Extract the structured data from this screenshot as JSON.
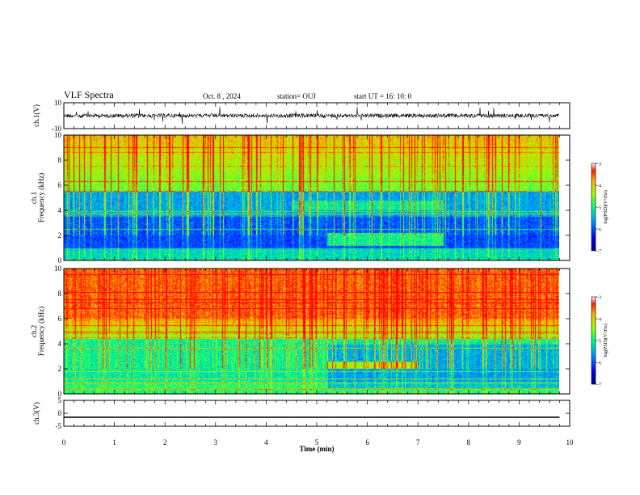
{
  "header": {
    "title": "VLF Spectra",
    "date": "Oct. 8 , 2024",
    "station": "station= OUJ",
    "start_time": "start UT =  16: 10: 0"
  },
  "chart_data": [
    {
      "type": "line",
      "panel": "ch1-waveform",
      "ylabel": "ch.1(V)",
      "ylim": [
        -10,
        10
      ],
      "y_ticks": [
        "10",
        "-10"
      ],
      "xlim": [
        0,
        10
      ],
      "description_level_volts": 0,
      "x_extent_min": 9.8
    },
    {
      "type": "heatmap",
      "panel": "ch1-spectrogram",
      "ylabel": "ch.1 Frequency (kHz)",
      "ylabel_lines": [
        "ch.1",
        "Frequency (kHz)"
      ],
      "ylim": [
        0,
        10
      ],
      "y_ticks": [
        "0",
        "2",
        "4",
        "6",
        "8",
        "10"
      ],
      "xlim": [
        0,
        10
      ],
      "x_extent_min": 9.8,
      "colorbar": {
        "label": "log(PSD)(V²/Hz)",
        "range": [
          -7,
          -3
        ],
        "ticks": [
          "-3",
          "-4",
          "-5",
          "-6",
          "-7"
        ]
      }
    },
    {
      "type": "heatmap",
      "panel": "ch2-spectrogram",
      "ylabel": "ch.2 Frequency (kHz)",
      "ylabel_lines": [
        "ch.2",
        "Frequency (kHz)"
      ],
      "ylim": [
        0,
        10
      ],
      "y_ticks": [
        "0",
        "2",
        "4",
        "6",
        "8",
        "10"
      ],
      "xlim": [
        0,
        10
      ],
      "x_extent_min": 9.8,
      "colorbar": {
        "label": "log(PSD)(V²/Hz)",
        "range": [
          -7,
          -3
        ],
        "ticks": [
          "-3",
          "-4",
          "-5",
          "-6",
          "-7"
        ]
      }
    },
    {
      "type": "line",
      "panel": "ch3-waveform",
      "ylabel": "ch.3(V)",
      "ylim": [
        -5,
        5
      ],
      "y_ticks": [
        "5",
        "0",
        "-5"
      ],
      "xlim": [
        0,
        10
      ],
      "x_ticks": [
        "0",
        "1",
        "2",
        "3",
        "4",
        "5",
        "6",
        "7",
        "8",
        "9",
        "10"
      ],
      "xlabel": "Time (min)",
      "series": [
        {
          "x": [
            0,
            9.8
          ],
          "values": [
            -1.5,
            -1.5
          ]
        }
      ]
    }
  ],
  "colors": {
    "psd_low": "#00007f",
    "psd_mid": "#00ff60",
    "psd_high": "#ff1a00",
    "axis": "#000000"
  }
}
